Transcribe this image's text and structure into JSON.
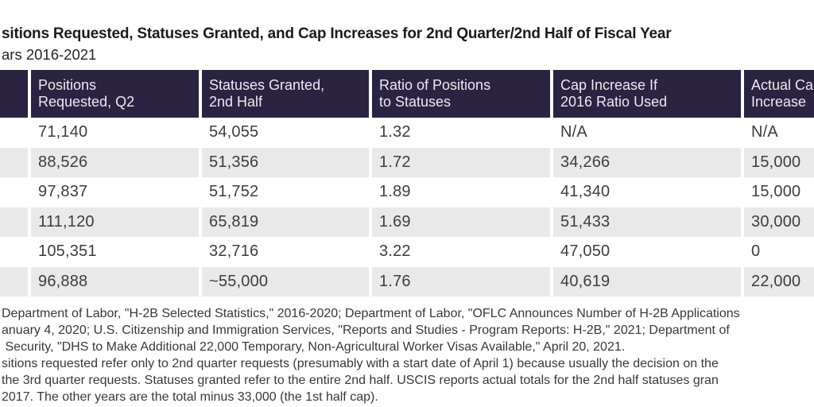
{
  "title": {
    "visible_text": "sitions Requested, Statuses Granted, and Cap Increases for 2nd Quarter/2nd Half of Fiscal Year"
  },
  "subtitle": {
    "visible_text": "ars 2016-2021"
  },
  "table": {
    "headers": [
      "",
      "Positions\nRequested, Q2",
      "Statuses Granted,\n2nd Half",
      "Ratio of Positions\nto Statuses",
      "Cap Increase If\n2016 Ratio Used",
      "Actual Cap\nIncrease"
    ],
    "rows": [
      [
        "",
        "71,140",
        "54,055",
        "1.32",
        "N/A",
        "N/A"
      ],
      [
        "",
        "88,526",
        "51,356",
        "1.72",
        "34,266",
        "15,000"
      ],
      [
        "",
        "97,837",
        "51,752",
        "1.89",
        "41,340",
        "15,000"
      ],
      [
        "",
        "111,120",
        "65,819",
        "1.69",
        "51,433",
        "30,000"
      ],
      [
        "",
        "105,351",
        "32,716",
        "3.22",
        "47,050",
        "0"
      ],
      [
        "",
        "96,888",
        "~55,000",
        "1.76",
        "40,619",
        "22,000"
      ]
    ]
  },
  "notes": {
    "lines": [
      "Department of Labor, \"H-2B Selected Statistics,\" 2016-2020; Department of Labor, \"OFLC Announces Number of H-2B Applications",
      "anuary 4, 2020; U.S. Citizenship and Immigration Services, \"Reports and Studies - Program Reports: H-2B,\" 2021; Department of",
      " Security, \"DHS to Make Additional 22,000 Temporary, Non-Agricultural Worker Visas Available,\" April 20, 2021.",
      "sitions requested refer only to 2nd quarter requests (presumably with a start date of April 1) because usually the decision on the",
      "the 3rd quarter requests. Statuses granted refer to the entire 2nd half. USCIS reports actual totals for the 2nd half statuses gran",
      "2017. The other years are the total minus 33,000 (the 1st half cap)."
    ]
  },
  "colors": {
    "header_bg": "#2a2342",
    "header_text": "#eceaf2",
    "row_stripe": "#e9e9e9",
    "body_text": "#3d3d3d",
    "note_text": "#383838",
    "title_text": "#1b1b1b"
  },
  "chart_data": {
    "type": "table",
    "title": "sitions Requested, Statuses Granted, and Cap Increases for 2nd Quarter/2nd Half of Fiscal Year",
    "subtitle": "ars 2016-2021",
    "columns": [
      "Positions Requested, Q2",
      "Statuses Granted, 2nd Half",
      "Ratio of Positions to Statuses",
      "Cap Increase If 2016 Ratio Used",
      "Actual Cap Increase"
    ],
    "rows": [
      [
        "71,140",
        "54,055",
        "1.32",
        "N/A",
        "N/A"
      ],
      [
        "88,526",
        "51,356",
        "1.72",
        "34,266",
        "15,000"
      ],
      [
        "97,837",
        "51,752",
        "1.89",
        "41,340",
        "15,000"
      ],
      [
        "111,120",
        "65,819",
        "1.69",
        "51,433",
        "30,000"
      ],
      [
        "105,351",
        "32,716",
        "3.22",
        "47,050",
        "0"
      ],
      [
        "96,888",
        "~55,000",
        "1.76",
        "40,619",
        "22,000"
      ]
    ],
    "layout": {
      "header_background": "#2a2342",
      "row_striping": "alternate gray starting with white",
      "first_column_cropped_off_left_edge": true,
      "last_column_cropped_off_right_edge": true
    }
  }
}
